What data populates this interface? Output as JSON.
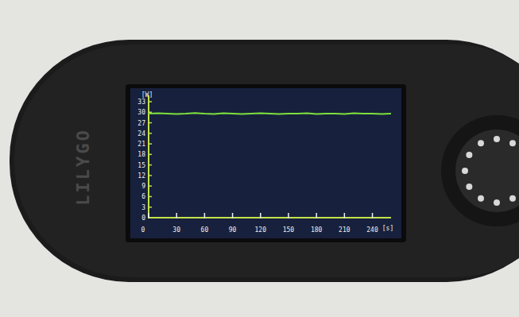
{
  "device": {
    "brand": "LILYGO"
  },
  "chart_data": {
    "type": "line",
    "x_label": "[s]",
    "y_label": "[W]",
    "x": [
      0,
      10,
      20,
      30,
      40,
      50,
      60,
      70,
      80,
      90,
      100,
      110,
      120,
      130,
      140,
      150,
      160,
      170,
      180,
      190,
      200,
      210,
      220,
      230,
      240,
      250,
      260
    ],
    "values": [
      29.6,
      29.7,
      29.6,
      29.5,
      29.6,
      29.8,
      29.6,
      29.5,
      29.7,
      29.6,
      29.5,
      29.6,
      29.7,
      29.6,
      29.5,
      29.6,
      29.6,
      29.7,
      29.5,
      29.6,
      29.6,
      29.5,
      29.7,
      29.6,
      29.6,
      29.5,
      29.6
    ],
    "color": "#7ee03c",
    "xlim": [
      0,
      260
    ],
    "xticks": [
      0,
      30,
      60,
      90,
      120,
      150,
      180,
      210,
      240
    ],
    "ylim": [
      0,
      33
    ],
    "yticks": [
      0,
      3,
      6,
      9,
      12,
      15,
      18,
      21,
      24,
      27,
      30,
      33
    ],
    "grid": false
  }
}
